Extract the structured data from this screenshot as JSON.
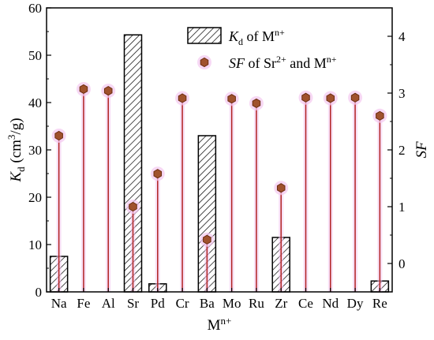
{
  "chart_data": {
    "type": "bar",
    "categories": [
      "Na",
      "Fe",
      "Al",
      "Sr",
      "Pd",
      "Cr",
      "Ba",
      "Mo",
      "Ru",
      "Zr",
      "Ce",
      "Nd",
      "Dy",
      "Re"
    ],
    "xlabel": "M",
    "xlabel_sup": "n+",
    "left_axis": {
      "label": "K",
      "label_sub": "d",
      "label_rest": " (cm",
      "label_sup": "3",
      "label_end": "/g)",
      "ylim": [
        0,
        60
      ],
      "ticks": [
        0,
        10,
        20,
        30,
        40,
        50,
        60
      ]
    },
    "right_axis": {
      "label": "SF",
      "ylim": [
        -0.5,
        4.5
      ],
      "ticks": [
        0,
        1,
        2,
        3,
        4
      ]
    },
    "series": [
      {
        "name": "Kd of Mn+",
        "kind": "hatched-bar",
        "axis": "left",
        "values": [
          7.5,
          0,
          0,
          54.3,
          1.7,
          0,
          33.0,
          0,
          0,
          11.5,
          0,
          0,
          0,
          2.3
        ]
      },
      {
        "name": "SF of Sr2+ and Mn+",
        "kind": "stem",
        "axis": "right",
        "values": [
          2.25,
          3.07,
          3.04,
          1.0,
          1.58,
          2.91,
          0.42,
          2.9,
          2.82,
          1.33,
          2.92,
          2.91,
          2.92,
          2.6
        ]
      }
    ],
    "legend": {
      "position": "top-center",
      "items": [
        {
          "main": "K",
          "sub": "d",
          "rest": " of M",
          "sup": "n+"
        },
        {
          "main": "SF",
          "rest": " of Sr",
          "sup": "2+",
          "rest2": " and M",
          "sup2": "n+"
        }
      ]
    },
    "colors": {
      "stem_line": "#b22222",
      "marker_fill": "#a0522d",
      "marker_stroke": "#6b2d10",
      "marker_glow": "#f3c7ef",
      "bar_stroke": "#000000",
      "hatch": "#000000"
    },
    "grid": false
  }
}
